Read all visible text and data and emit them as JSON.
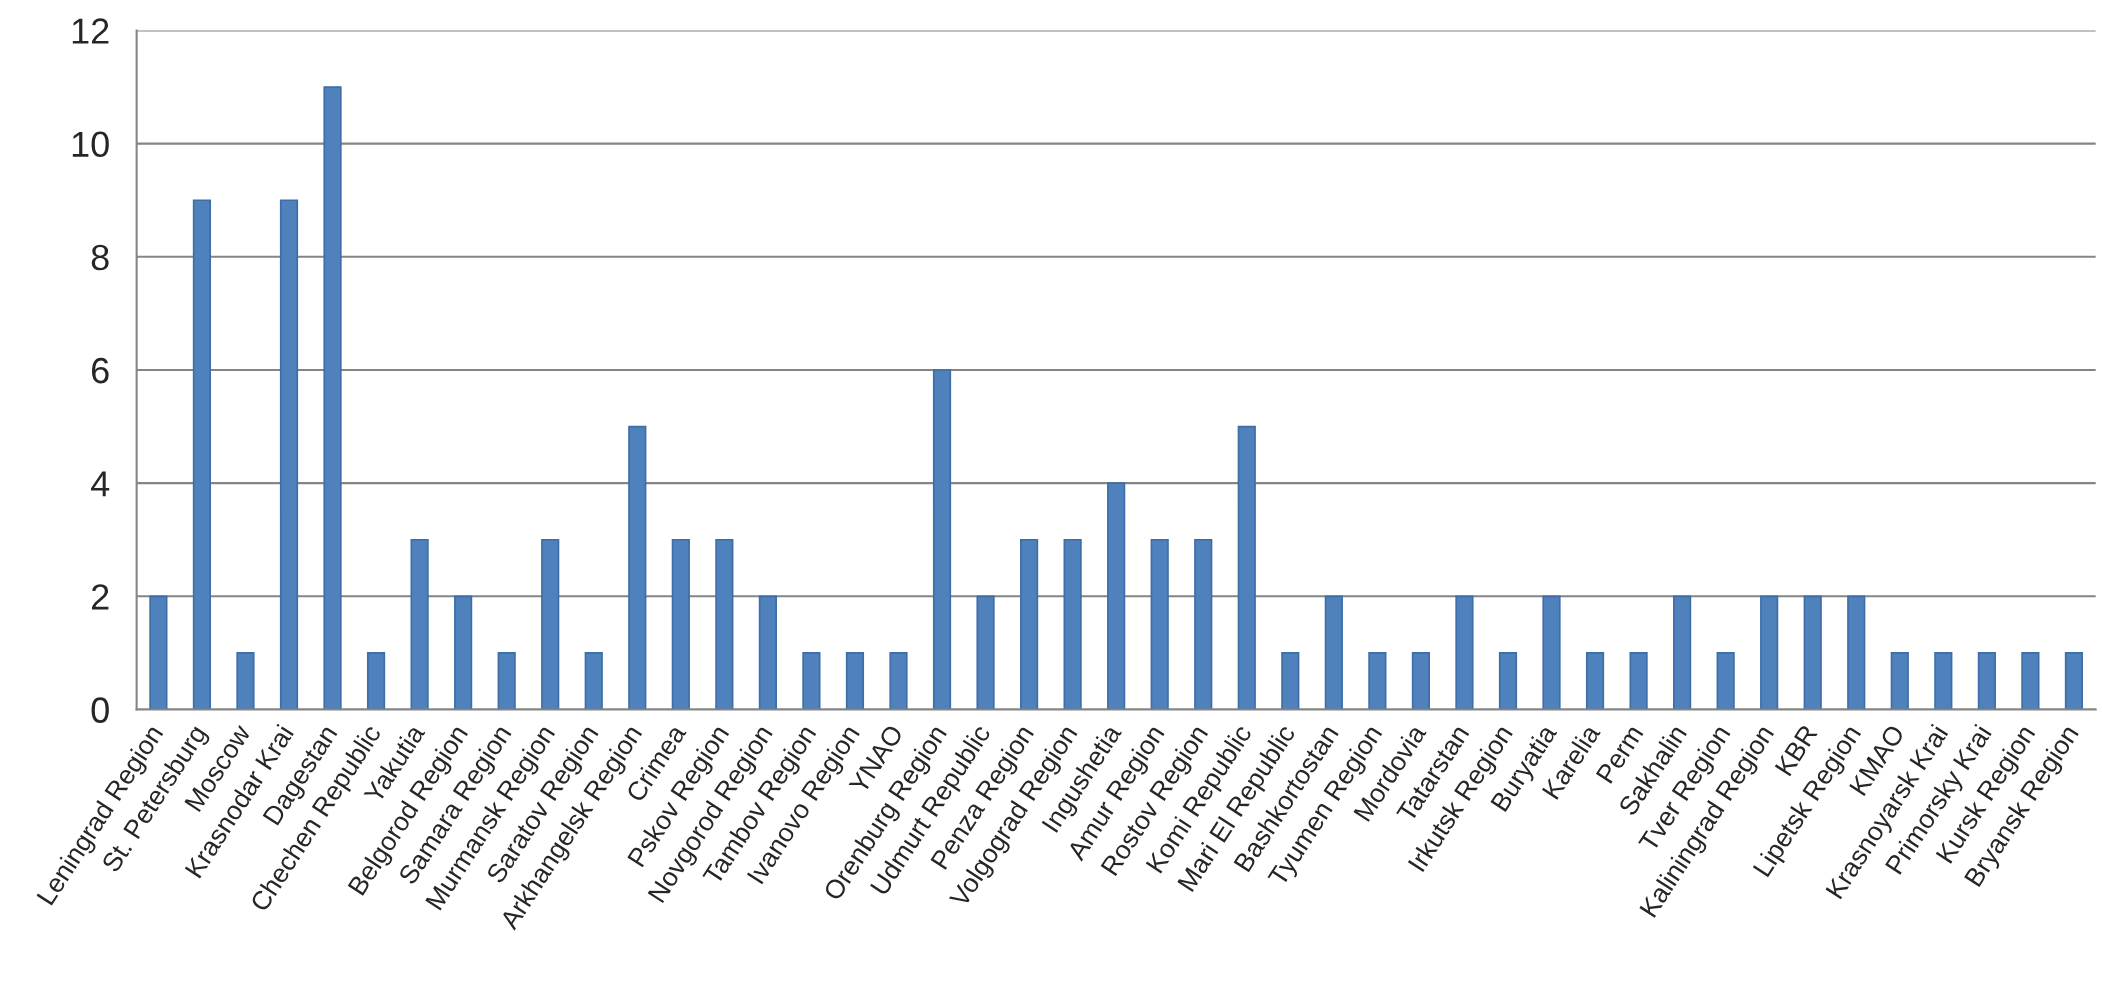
{
  "chart_data": {
    "type": "bar",
    "categories": [
      "Leningrad Region",
      "St. Petersburg",
      "Moscow",
      "Krasnodar Krai",
      "Dagestan",
      "Chechen Republic",
      "Yakutia",
      "Belgorod Region",
      "Samara Region",
      "Murmansk Region",
      "Saratov Region",
      "Arkhangelsk Region",
      "Crimea",
      "Pskov Region",
      "Novgorod Region",
      "Tambov Region",
      "Ivanovo Region",
      "YNAO",
      "Orenburg Region",
      "Udmurt Republic",
      "Penza Region",
      "Volgograd Region",
      "Ingushetia",
      "Amur Region",
      "Rostov Region",
      "Komi Republic",
      "Mari El Republic",
      "Bashkortostan",
      "Tyumen Region",
      "Mordovia",
      "Tatarstan",
      "Irkutsk Region",
      "Buryatia",
      "Karelia",
      "Perm",
      "Sakhalin",
      "Tver Region",
      "Kaliningrad Region",
      "KBR",
      "Lipetsk Region",
      "KMAO",
      "Krasnoyarsk Krai",
      "Primorsky Krai",
      "Kursk Region",
      "Bryansk Region"
    ],
    "values": [
      2,
      9,
      1,
      9,
      11,
      1,
      3,
      2,
      1,
      3,
      1,
      5,
      3,
      3,
      2,
      1,
      1,
      1,
      6,
      2,
      3,
      3,
      4,
      3,
      3,
      5,
      1,
      2,
      1,
      1,
      2,
      1,
      2,
      1,
      1,
      2,
      1,
      2,
      2,
      2,
      1,
      1,
      1,
      1,
      1
    ],
    "color": "#4f81bd",
    "ylim": [
      0,
      12
    ],
    "yticks": [
      0,
      2,
      4,
      6,
      8,
      10,
      12
    ],
    "grid": "y"
  }
}
